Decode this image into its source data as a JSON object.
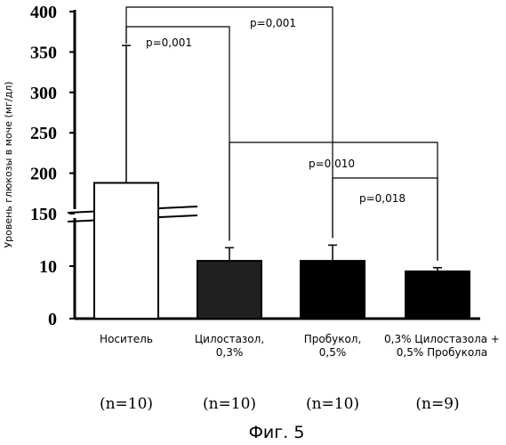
{
  "chart_data": {
    "type": "bar",
    "title": "",
    "xlabel": "",
    "ylabel": "Уровень глюкозы в моче (мг/дл)",
    "y_scale": "broken",
    "y_ticks_lower": [
      "0",
      "10"
    ],
    "y_ticks_upper": [
      "150",
      "200",
      "250",
      "300",
      "350",
      "400"
    ],
    "ylim_lower": [
      0,
      20
    ],
    "ylim_upper": [
      150,
      400
    ],
    "categories": [
      [
        "Носитель"
      ],
      [
        "Цилостазол,",
        "0,3%"
      ],
      [
        "Пробукол,",
        "0,5%"
      ],
      [
        "0,3% Цилостазола +",
        "0,5% Пробукола"
      ]
    ],
    "values": [
      188,
      11,
      11,
      9
    ],
    "errors": [
      170,
      2.5,
      3,
      0.7
    ],
    "bar_colors": [
      "#ffffff",
      "#202020",
      "#000000",
      "#000000"
    ],
    "n_labels": [
      "(n=10)",
      "(n=10)",
      "(n=10)",
      "(n=9)"
    ],
    "comparisons": [
      {
        "from": 0,
        "to": 2,
        "p": "p=0,001"
      },
      {
        "from": 0,
        "to": 1,
        "p": "p=0,001"
      },
      {
        "from": 1,
        "to": 3,
        "p": "p=0,010"
      },
      {
        "from": 2,
        "to": 3,
        "p": "p=0,018"
      }
    ],
    "caption": "Фиг. 5",
    "grid": false
  }
}
